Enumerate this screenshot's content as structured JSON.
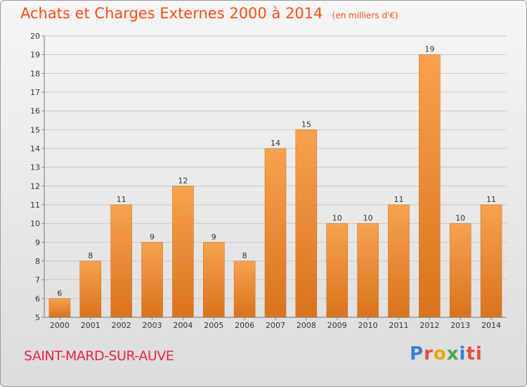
{
  "header": {
    "title": "Achats et Charges Externes 2000 à 2014",
    "unit": "(en milliers d'€)"
  },
  "footer": {
    "place": "SAINT-MARD-SUR-AUVE",
    "brand": "Proxiti"
  },
  "colors": {
    "bar_top": "#f7a24f",
    "bar_bottom": "#d9731d",
    "grid": "#c8c8c8",
    "title": "#ff4d12",
    "place": "#e8244a"
  },
  "chart_data": {
    "type": "bar",
    "title": "Achats et Charges Externes 2000 à 2014",
    "xlabel": "",
    "ylabel": "",
    "categories": [
      "2000",
      "2001",
      "2002",
      "2003",
      "2004",
      "2005",
      "2006",
      "2007",
      "2008",
      "2009",
      "2010",
      "2011",
      "2012",
      "2013",
      "2014"
    ],
    "values": [
      6,
      8,
      11,
      9,
      12,
      9,
      8,
      14,
      15,
      10,
      10,
      11,
      19,
      10,
      11
    ],
    "ylim": [
      5,
      20
    ],
    "yticks": [
      5,
      6,
      7,
      8,
      9,
      10,
      11,
      12,
      13,
      14,
      15,
      16,
      17,
      18,
      19,
      20
    ],
    "grid": true
  }
}
